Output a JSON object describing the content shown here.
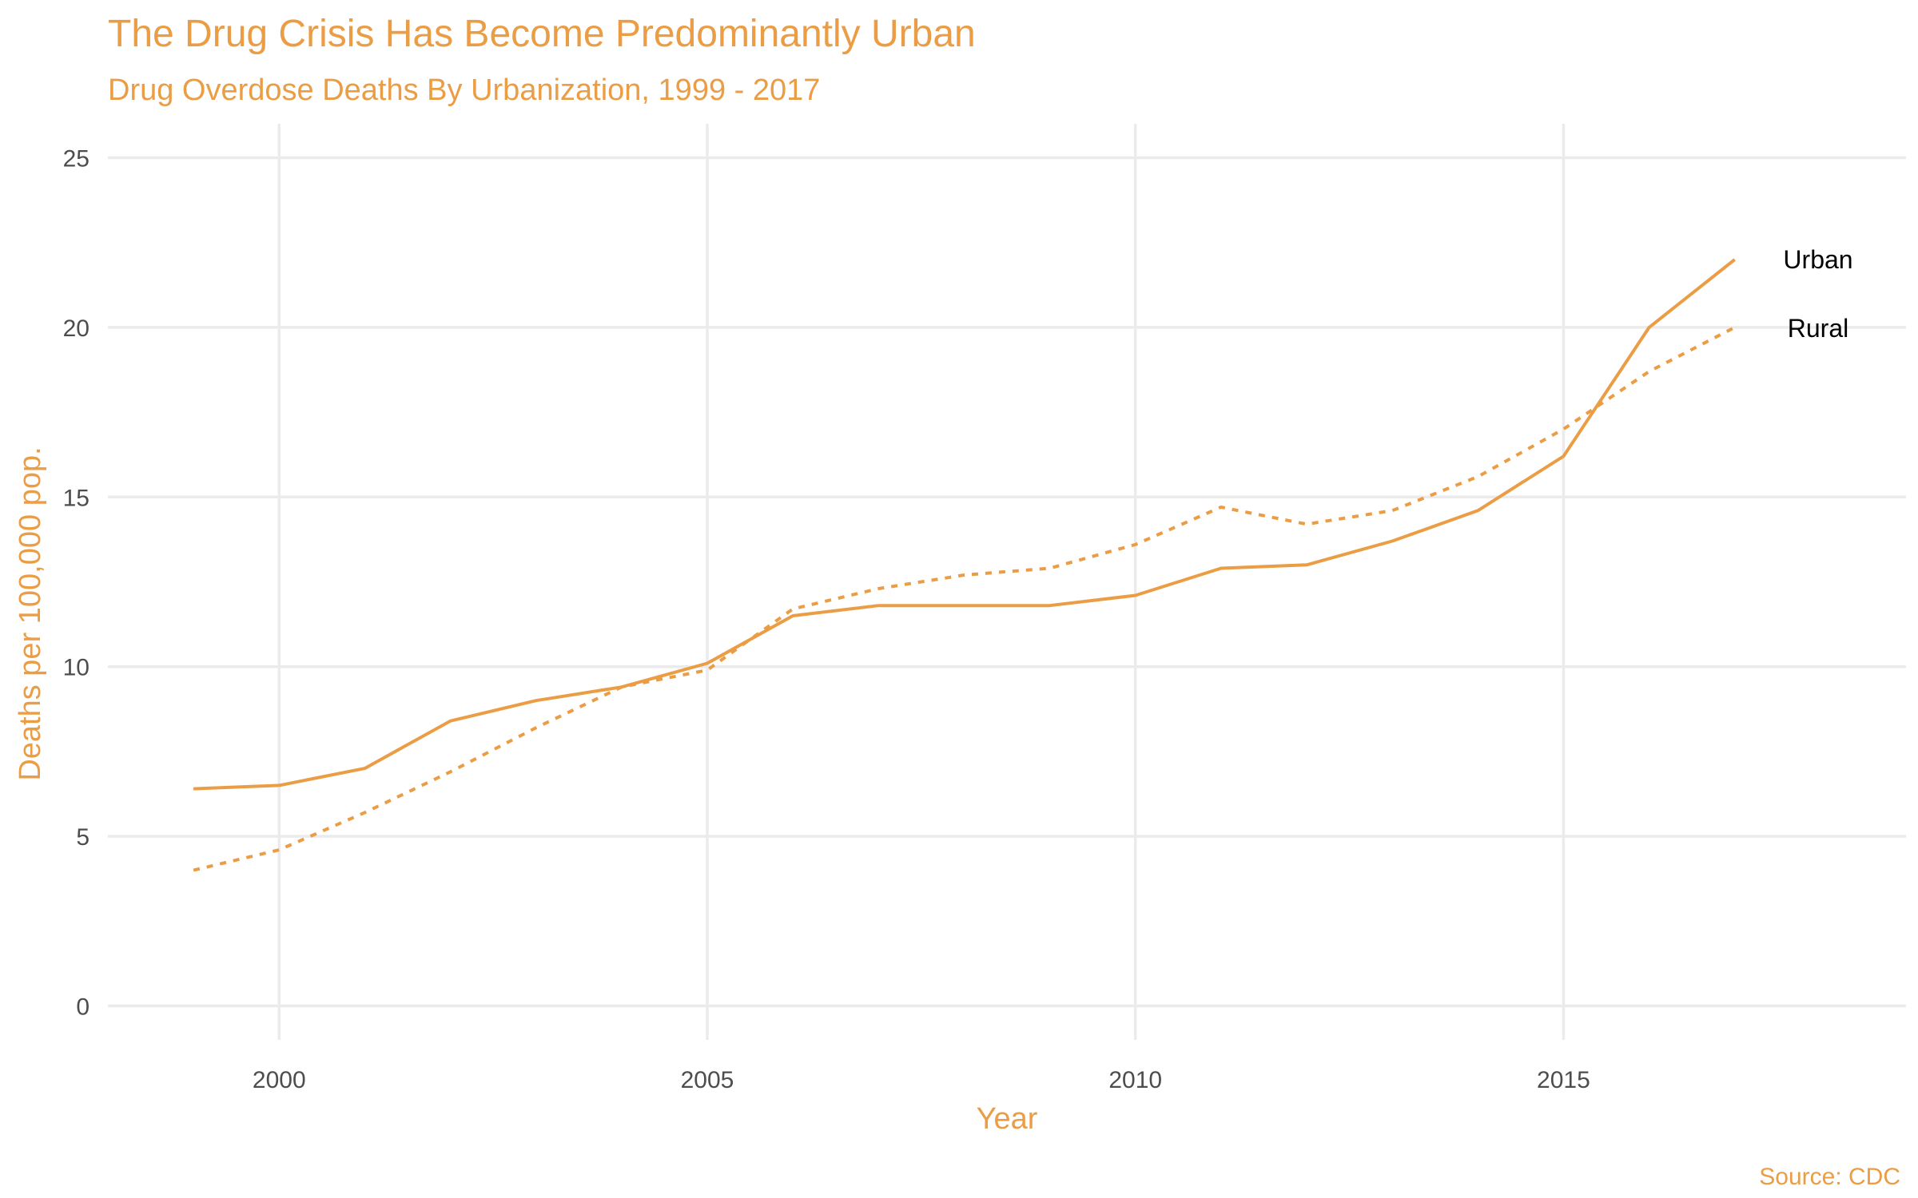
{
  "colors": {
    "accent": "#eb9d45",
    "grid": "#ebebeb",
    "tick_text": "#4d4d4d",
    "label_text": "#000000"
  },
  "chart_data": {
    "type": "line",
    "title": "The Drug Crisis Has Become Predominantly Urban",
    "subtitle": "Drug Overdose Deaths By Urbanization, 1999 - 2017",
    "xlabel": "Year",
    "ylabel": "Deaths per 100,000 pop.",
    "caption": "Source: CDC",
    "xlim": [
      1998,
      2019
    ],
    "ylim": [
      -1,
      26
    ],
    "x_ticks": [
      2000,
      2005,
      2010,
      2015
    ],
    "y_ticks": [
      0,
      5,
      10,
      15,
      20,
      25
    ],
    "grid": true,
    "legend": "none (direct labels at line ends)",
    "x": [
      1999,
      2000,
      2001,
      2002,
      2003,
      2004,
      2005,
      2006,
      2007,
      2008,
      2009,
      2010,
      2011,
      2012,
      2013,
      2014,
      2015,
      2016,
      2017
    ],
    "series": [
      {
        "name": "Urban",
        "line_style": "solid",
        "values": [
          6.4,
          6.5,
          7.0,
          8.4,
          9.0,
          9.4,
          10.1,
          11.5,
          11.8,
          11.8,
          11.8,
          12.1,
          12.9,
          13.0,
          13.7,
          14.6,
          16.2,
          20.0,
          22.0
        ]
      },
      {
        "name": "Rural",
        "line_style": "dotted",
        "values": [
          4.0,
          4.6,
          5.7,
          6.9,
          8.2,
          9.4,
          9.9,
          11.7,
          12.3,
          12.7,
          12.9,
          13.6,
          14.7,
          14.2,
          14.6,
          15.6,
          17.0,
          18.7,
          20.0
        ]
      }
    ]
  }
}
